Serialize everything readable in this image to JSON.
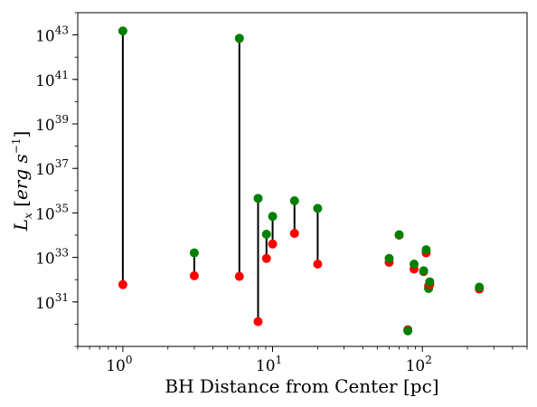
{
  "chart_data": {
    "type": "scatter",
    "xlabel": "BH Distance from Center [pc]",
    "ylabel": "L_x [erg s^-1]",
    "xscale": "log",
    "yscale": "log",
    "xlim": [
      0.5,
      500
    ],
    "ylim": [
      1e+29,
      1e+44
    ],
    "x_ticks": [
      {
        "value": 1,
        "label": "10",
        "exp": "0"
      },
      {
        "value": 10,
        "label": "10",
        "exp": "1"
      },
      {
        "value": 100,
        "label": "10",
        "exp": "2"
      }
    ],
    "y_ticks": [
      {
        "value": 1e+31,
        "label": "10",
        "exp": "31"
      },
      {
        "value": 1e+33,
        "label": "10",
        "exp": "33"
      },
      {
        "value": 1e+35,
        "label": "10",
        "exp": "35"
      },
      {
        "value": 1e+37,
        "label": "10",
        "exp": "37"
      },
      {
        "value": 1e+39,
        "label": "10",
        "exp": "39"
      },
      {
        "value": 1e+41,
        "label": "10",
        "exp": "41"
      },
      {
        "value": 1e+43,
        "label": "10",
        "exp": "43"
      }
    ],
    "grid": false,
    "colors": {
      "green": "#008000",
      "red": "#ff0000",
      "line": "#000000"
    },
    "pairs": [
      {
        "x": 1.0,
        "green": 1.5e+43,
        "red": 6e+31
      },
      {
        "x": 3.0,
        "green": 1.6e+33,
        "red": 1.5e+32
      },
      {
        "x": 6.0,
        "green": 7e+42,
        "red": 1.4e+32
      },
      {
        "x": 8.0,
        "green": 4.5e+35,
        "red": 1.3e+30
      },
      {
        "x": 9.1,
        "green": 1.1e+34,
        "red": 9e+32
      },
      {
        "x": 10.0,
        "green": 7e+34,
        "red": 4e+33
      },
      {
        "x": 14.0,
        "green": 3.5e+35,
        "red": 1.2e+34
      },
      {
        "x": 20.0,
        "green": 1.6e+35,
        "red": 5e+32
      },
      {
        "x": 60.0,
        "green": 9e+32,
        "red": 6e+32
      },
      {
        "x": 70.0,
        "green": 1.05e+34,
        "red": 1e+34
      },
      {
        "x": 80.0,
        "green": 5e+29,
        "red": 5.6e+29
      },
      {
        "x": 88.0,
        "green": 5e+32,
        "red": 3e+32
      },
      {
        "x": 102.0,
        "green": 2.5e+32,
        "red": 2.3e+32
      },
      {
        "x": 106.0,
        "green": 2.2e+33,
        "red": 1.6e+33
      },
      {
        "x": 110.0,
        "green": 4e+31,
        "red": 5.2e+31
      },
      {
        "x": 112.0,
        "green": 8e+31,
        "red": 6e+31
      },
      {
        "x": 240.0,
        "green": 4.6e+31,
        "red": 3.8e+31
      }
    ]
  }
}
